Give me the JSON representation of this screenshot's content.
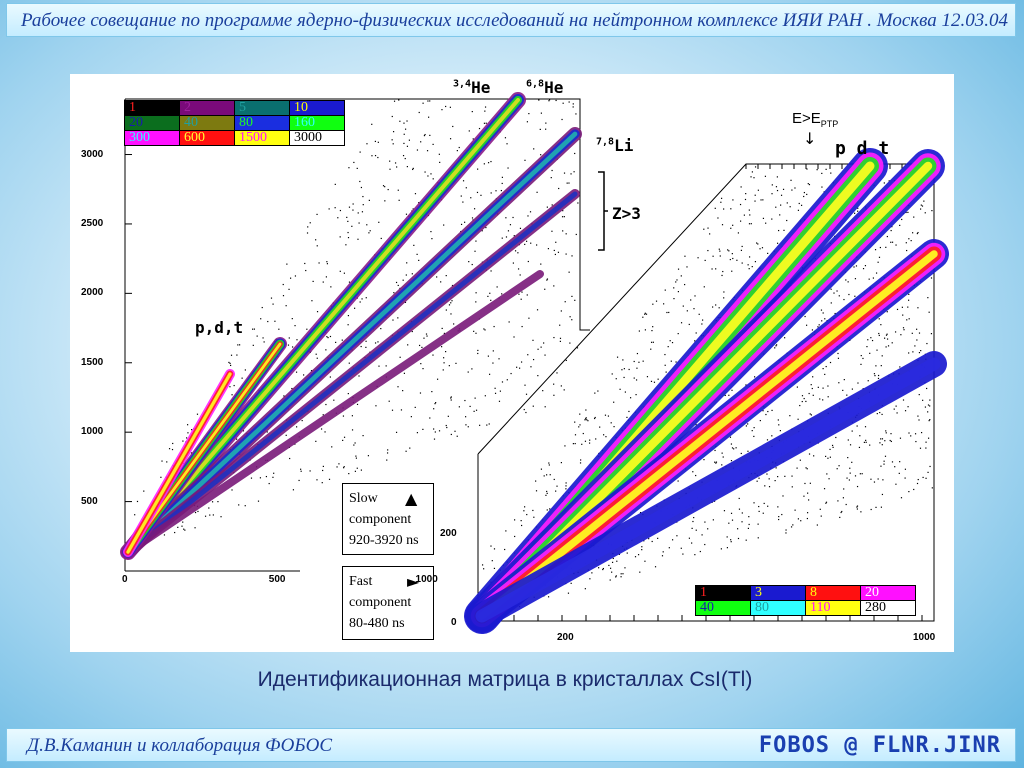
{
  "header": {
    "title": "Рабочее совещание по программе ядерно-физических исследований  на нейтронном комплексе ИЯИ РАН . Москва 12.03.04"
  },
  "footer": {
    "author": "Д.В.Каманин и коллаборация ФОБОС",
    "brand": "FOBOS @ FLNR.JINR"
  },
  "caption": "Идентификационная матрица в кристаллах CsI(Tl)",
  "colors": {
    "banner_text": "#1a3f9c",
    "caption_text": "#1a2a6c",
    "brand_text": "#1a3fb0"
  },
  "chart_data": [
    {
      "type": "heatmap",
      "description_labels": {
        "he34": "3,4",
        "he34_el": "He",
        "he68": "6,8",
        "he68_el": "He",
        "li78": "7,8",
        "li78_el": "Li",
        "zgt3": "Z>3",
        "pdt": "p,d,t"
      },
      "ticks": {
        "y": [
          {
            "v": 3000,
            "t": "3000"
          },
          {
            "v": 2500,
            "t": "2500"
          },
          {
            "v": 2000,
            "t": "2000"
          },
          {
            "v": 1500,
            "t": "1500"
          },
          {
            "v": 1000,
            "t": "1000"
          },
          {
            "v": 500,
            "t": "500"
          }
        ],
        "x": [
          {
            "v": 0,
            "t": "0"
          },
          {
            "v": 500,
            "t": "500"
          },
          {
            "v": 1000,
            "t": "1000"
          }
        ]
      },
      "ylim": [
        0,
        3400
      ],
      "xlim": [
        0,
        1550
      ],
      "color_legend": [
        [
          {
            "v": "1",
            "bg": "#000000",
            "fg": "#ff2020"
          },
          {
            "v": "2",
            "bg": "#7a0a7a",
            "fg": "#a020a0"
          },
          {
            "v": "5",
            "bg": "#0a6f6f",
            "fg": "#20a0a0"
          },
          {
            "v": "10",
            "bg": "#1a1ad0",
            "fg": "#ffff00"
          }
        ],
        [
          {
            "v": "20",
            "bg": "#0b6e1e",
            "fg": "#1a1ab0"
          },
          {
            "v": "40",
            "bg": "#7d7a10",
            "fg": "#20a0a0"
          },
          {
            "v": "80",
            "bg": "#1a2ee0",
            "fg": "#20ff20"
          },
          {
            "v": "160",
            "bg": "#10ff10",
            "fg": "#30ffff"
          }
        ],
        [
          {
            "v": "300",
            "bg": "#ff10ff",
            "fg": "#30ffff"
          },
          {
            "v": "600",
            "bg": "#ff1010",
            "fg": "#ffff30"
          },
          {
            "v": "1500",
            "bg": "#ffff10",
            "fg": "#ff10ff"
          },
          {
            "v": "3000",
            "bg": "#ffffff",
            "fg": "#000000"
          }
        ]
      ],
      "slow_note": {
        "line1": "Slow",
        "line2": "component",
        "line3": "920-3920 ns",
        "marker": "▲"
      },
      "fast_note": {
        "line1": "Fast",
        "line2": "component",
        "line3": "80-480 ns",
        "marker": "►"
      }
    },
    {
      "type": "heatmap",
      "labels": {
        "e": "E>E",
        "sub": "PTP",
        "arrow": "↓",
        "pdt": "p  d  t"
      },
      "ticks": {
        "y": [
          {
            "v": 200,
            "t": "200"
          },
          {
            "v": 0,
            "t": "0"
          }
        ],
        "x": [
          {
            "v": 200,
            "t": "200"
          },
          {
            "v": 1000,
            "t": "1000"
          }
        ]
      },
      "color_legend": [
        [
          {
            "v": "1",
            "bg": "#000000",
            "fg": "#ff2020"
          },
          {
            "v": "3",
            "bg": "#1a1ad0",
            "fg": "#ffff10"
          },
          {
            "v": "8",
            "bg": "#ff1010",
            "fg": "#ffff10"
          },
          {
            "v": "20",
            "bg": "#ff10ff",
            "fg": "#ffffff"
          }
        ],
        [
          {
            "v": "40",
            "bg": "#10ff10",
            "fg": "#1a1ab0"
          },
          {
            "v": "80",
            "bg": "#30ffff",
            "fg": "#20a0a0"
          },
          {
            "v": "110",
            "bg": "#ffff10",
            "fg": "#ff10ff"
          },
          {
            "v": "280",
            "bg": "#ffffff",
            "fg": "#000000"
          }
        ]
      ]
    }
  ]
}
